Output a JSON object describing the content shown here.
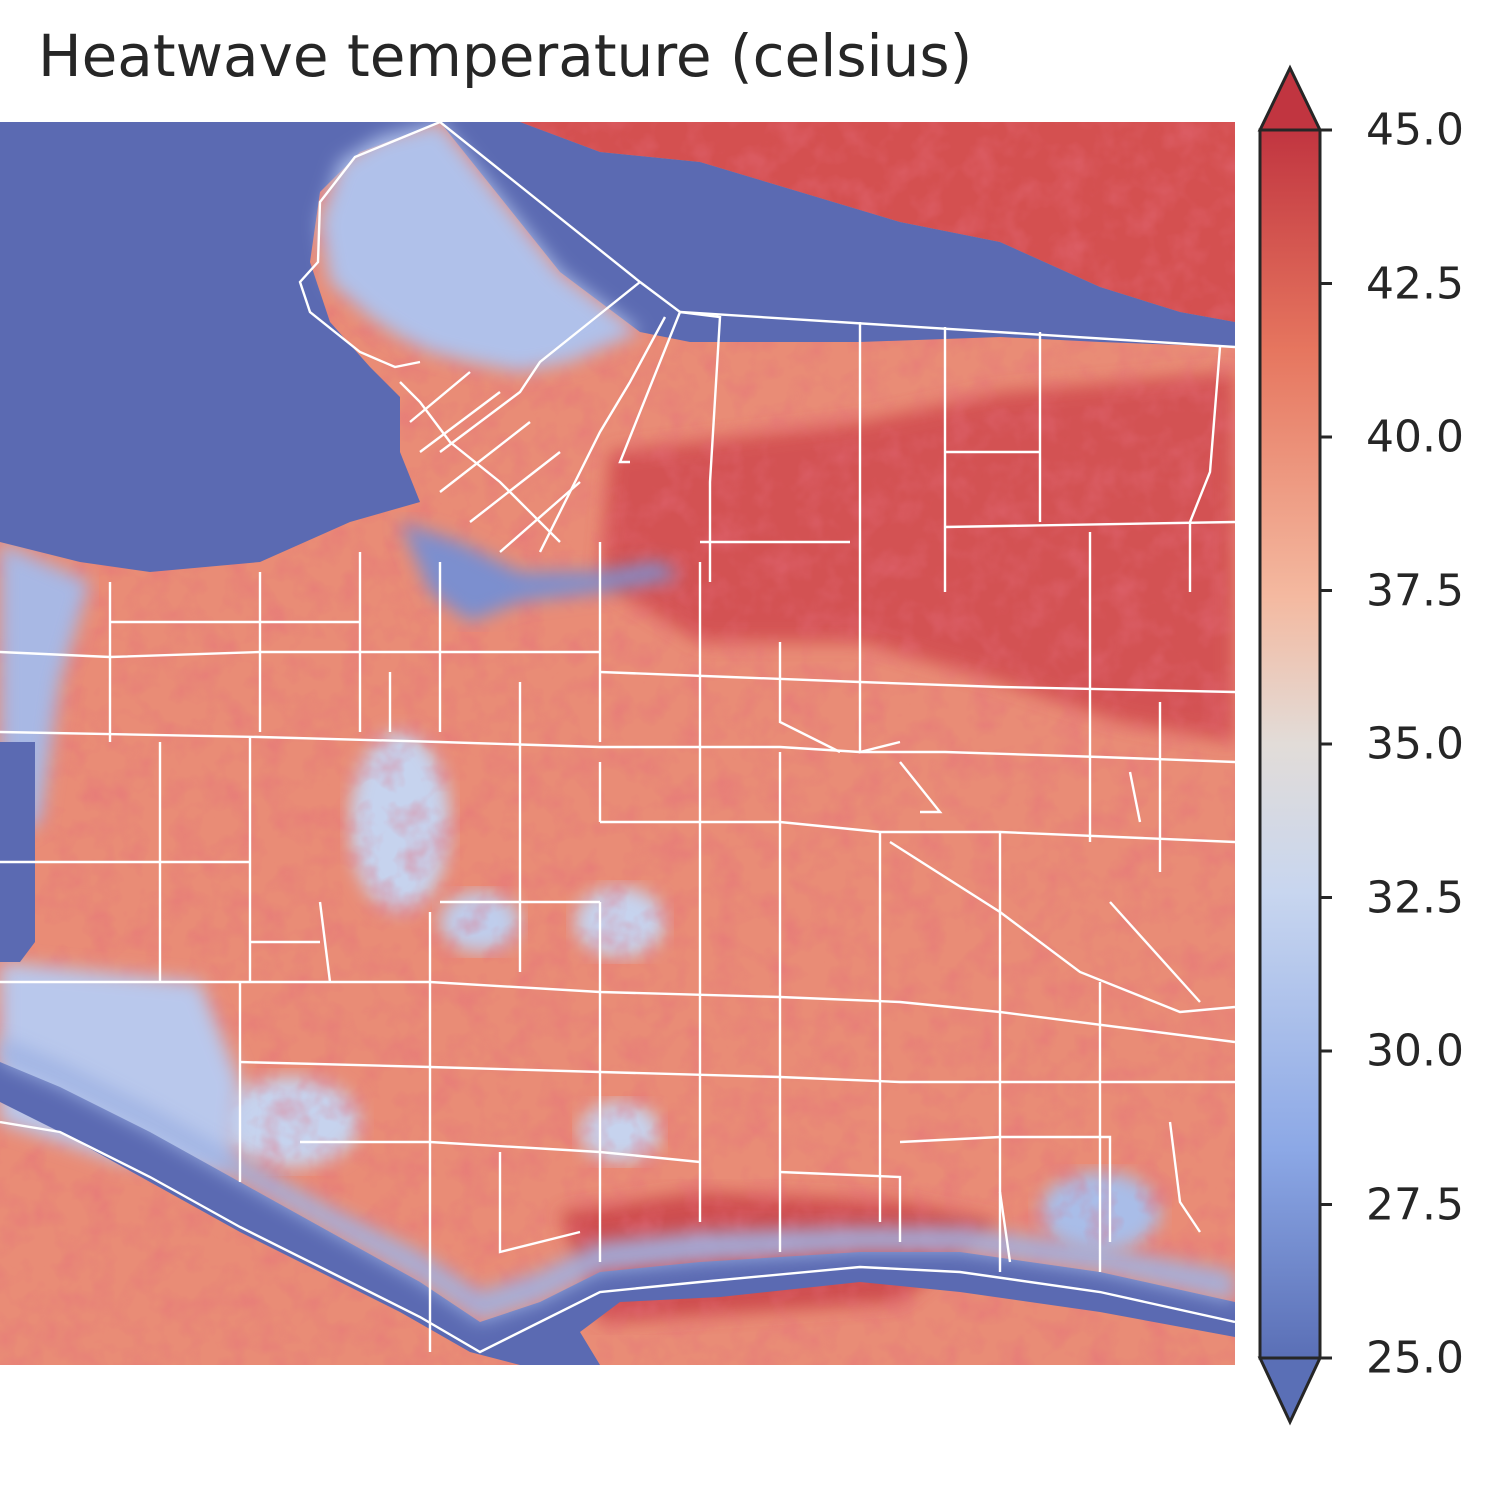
{
  "title": "Heatwave temperature (celsius)",
  "colorbar": {
    "min": 25.0,
    "max": 45.0,
    "ticks": [
      "25.0",
      "27.5",
      "30.0",
      "32.5",
      "35.0",
      "37.5",
      "40.0",
      "42.5",
      "45.0"
    ],
    "colors": [
      "#5a6fb6",
      "#8ca8e6",
      "#c8d6ef",
      "#e2dcd8",
      "#f4b9a0",
      "#e6765f",
      "#c13540"
    ],
    "extend": "both"
  },
  "map": {
    "water_color": "#5b6ab2",
    "boundary_color": "#ffffff"
  }
}
